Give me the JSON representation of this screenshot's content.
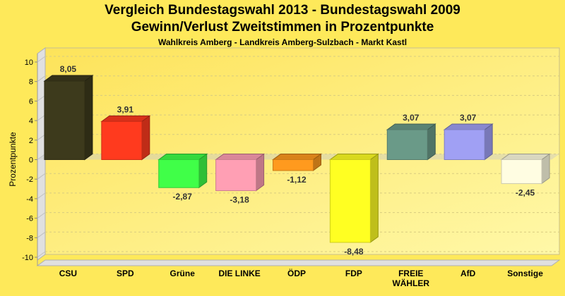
{
  "chart_data": {
    "type": "bar",
    "title": "Vergleich Bundestagswahl 2013 - Bundestagswahl 2009",
    "title2": "Gewinn/Verlust Zweitstimmen in Prozentpunkte",
    "subtitle": "Wahlkreis Amberg - Landkreis Amberg-Sulzbach - Markt Kastl",
    "ylabel": "Prozentpunkte",
    "xlabel": "",
    "ylim": [
      -10,
      10
    ],
    "yticks": [
      10,
      8,
      6,
      4,
      2,
      0,
      -2,
      -4,
      -6,
      -8,
      -10
    ],
    "grid": true,
    "categories": [
      "CSU",
      "SPD",
      "Grüne",
      "DIE LINKE",
      "ÖDP",
      "FDP",
      "FREIE WÄHLER",
      "AfD",
      "Sonstige"
    ],
    "values": [
      8.05,
      3.91,
      -2.87,
      -3.18,
      -1.12,
      -8.48,
      3.07,
      3.07,
      -2.45
    ],
    "data_labels": [
      "8,05",
      "3,91",
      "-2,87",
      "-3,18",
      "-1,12",
      "-8,48",
      "3,07",
      "3,07",
      "-2,45"
    ],
    "colors": [
      "#3d3a1c",
      "#ff3a1e",
      "#40ff48",
      "#ff9fb4",
      "#ff9a1e",
      "#ffff22",
      "#6a9a88",
      "#a0a0f4",
      "#fffde2"
    ]
  }
}
